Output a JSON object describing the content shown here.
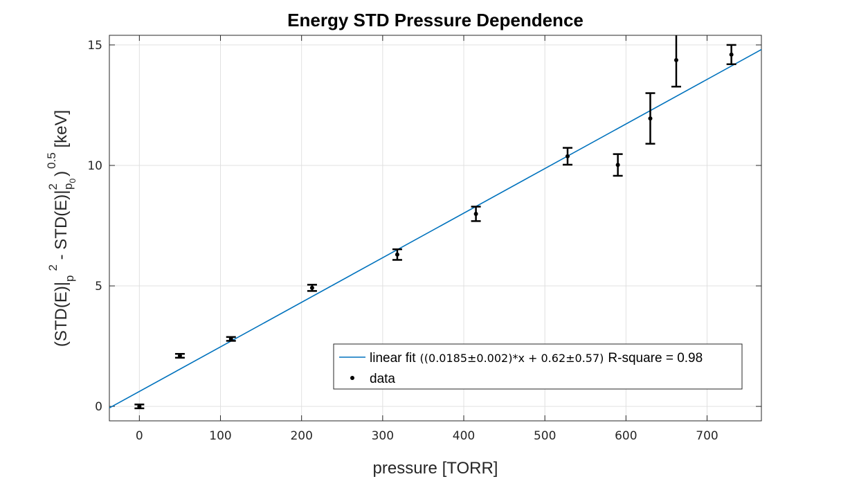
{
  "chart_data": {
    "type": "scatter",
    "title": "Energy STD Pressure  Dependence",
    "xlabel": "pressure [TORR]",
    "ylabel": {
      "part1": "(STD(E)|",
      "sub1": "p",
      "sup1": "2",
      "part2": " - STD(E)|",
      "sup2": "2",
      "sub2": "p",
      "subsub2": "0",
      "part3": ")",
      "sup3": "0.5",
      "part4": " [keV]"
    },
    "xlim": [
      -37,
      767
    ],
    "ylim": [
      -0.6,
      15.4
    ],
    "xticks": [
      0,
      100,
      200,
      300,
      400,
      500,
      600,
      700
    ],
    "yticks": [
      0,
      5,
      10,
      15
    ],
    "grid": true,
    "colors": {
      "fit": "#0072BD",
      "data": "#000000",
      "grid": "#e0e0e0"
    },
    "series": [
      {
        "name": "data",
        "type": "errorbar",
        "points": [
          {
            "x": 0,
            "y": 0.0,
            "err": 0.08
          },
          {
            "x": 50,
            "y": 2.1,
            "err": 0.08
          },
          {
            "x": 113,
            "y": 2.8,
            "err": 0.08
          },
          {
            "x": 213,
            "y": 4.92,
            "err": 0.13
          },
          {
            "x": 318,
            "y": 6.3,
            "err": 0.22
          },
          {
            "x": 415,
            "y": 7.99,
            "err": 0.3
          },
          {
            "x": 528,
            "y": 10.38,
            "err": 0.35
          },
          {
            "x": 590,
            "y": 10.02,
            "err": 0.45
          },
          {
            "x": 630,
            "y": 11.95,
            "err": 1.05
          },
          {
            "x": 662,
            "y": 14.37,
            "err": 1.1
          },
          {
            "x": 730,
            "y": 14.6,
            "err": 0.4
          }
        ]
      },
      {
        "name": "linear fit",
        "type": "line",
        "slope": 0.0185,
        "intercept": 0.62
      }
    ],
    "legend": {
      "position": "bottom-right",
      "fit_label": "linear fit",
      "fit_formula": "((0.0185±0.002)*x + 0.62±0.57)",
      "fit_rsq": "R-square = 0.98",
      "data_label": "data"
    }
  }
}
